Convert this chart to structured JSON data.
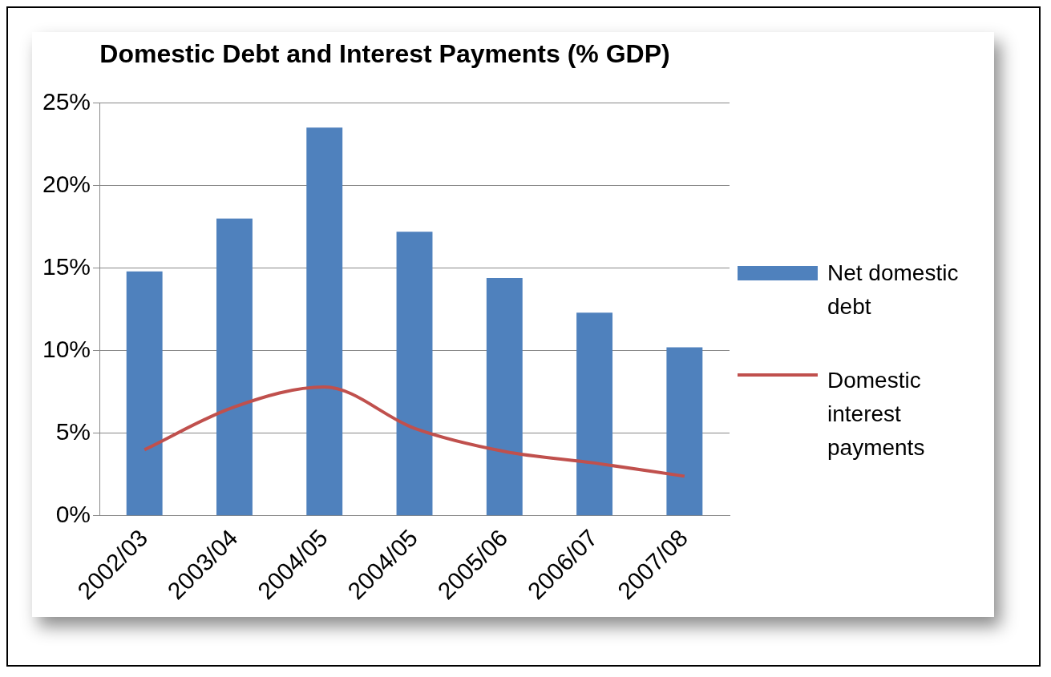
{
  "chart_data": {
    "type": "bar",
    "title": "Domestic Debt and Interest Payments (% GDP)",
    "categories": [
      "2002/03",
      "2003/04",
      "2004/05",
      "2004/05",
      "2005/06",
      "2006/07",
      "2007/08"
    ],
    "series": [
      {
        "name": "Net domestic debt",
        "color": "#4f81bd",
        "values": [
          14.8,
          18.0,
          23.5,
          17.2,
          14.4,
          12.3,
          10.2
        ]
      },
      {
        "name": "Domestic interest payments",
        "type": "line",
        "color": "#c0504d",
        "values": [
          4.0,
          6.6,
          7.8,
          5.3,
          3.9,
          3.2,
          2.4
        ]
      }
    ],
    "ylim": [
      0,
      25
    ],
    "yticks": [
      {
        "value": 0,
        "label": "0%"
      },
      {
        "value": 5,
        "label": "5%"
      },
      {
        "value": 10,
        "label": "10%"
      },
      {
        "value": 15,
        "label": "15%"
      },
      {
        "value": 20,
        "label": "20%"
      },
      {
        "value": 25,
        "label": "25%"
      }
    ],
    "grid": "y",
    "legend": "right",
    "marker": "none",
    "line_style": "solid"
  }
}
